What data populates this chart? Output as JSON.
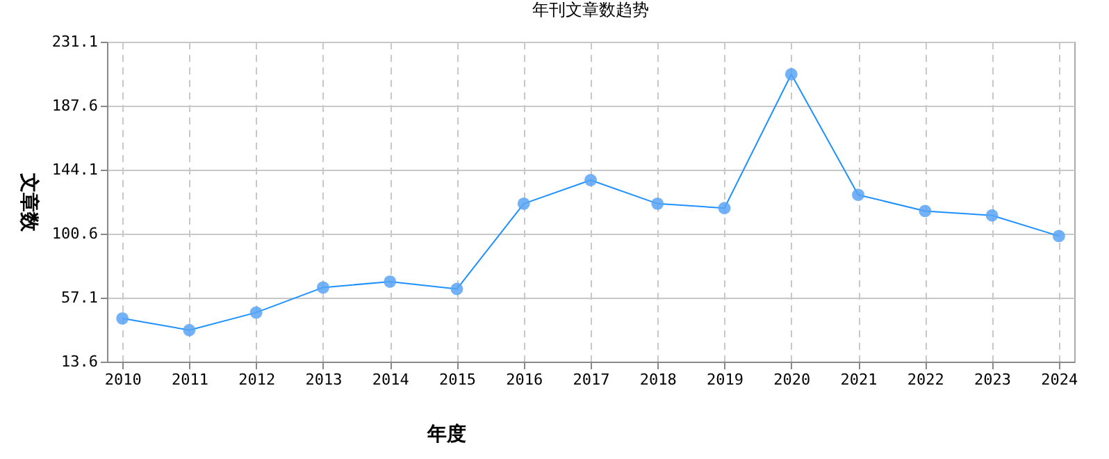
{
  "chart_data": {
    "type": "line",
    "title": "年刊文章数趋势",
    "xlabel": "年度",
    "ylabel": "文章数",
    "categories": [
      "2010",
      "2011",
      "2012",
      "2013",
      "2014",
      "2015",
      "2016",
      "2017",
      "2018",
      "2019",
      "2020",
      "2021",
      "2022",
      "2023",
      "2024"
    ],
    "series": [
      {
        "color": "#1e90ff",
        "values": [
          43,
          35,
          47,
          64,
          68,
          63,
          121,
          137,
          121,
          118,
          209,
          127,
          116,
          113,
          99
        ]
      }
    ],
    "ylim": [
      13.6,
      231.1
    ],
    "yticks": [
      13.6,
      57.1,
      100.6,
      144.1,
      187.6,
      231.1
    ],
    "grid": true,
    "marker": "circle",
    "line_style": "solid"
  }
}
